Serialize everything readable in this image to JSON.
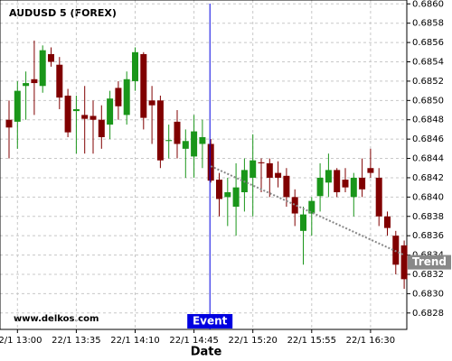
{
  "chart_data": {
    "type": "candlestick",
    "title": "AUDUSD 5 (FOREX)",
    "x_label": "Date",
    "watermark": "www.delkos.com",
    "categories": [
      null,
      "22/1 13:00",
      null,
      null,
      null,
      null,
      null,
      null,
      "22/1 13:35",
      null,
      null,
      null,
      null,
      null,
      null,
      "22/1 14:10",
      null,
      null,
      null,
      null,
      null,
      null,
      "22/1 14:45",
      null,
      null,
      null,
      null,
      null,
      null,
      "22/1 15:20",
      null,
      null,
      null,
      null,
      null,
      null,
      "22/1 15:55",
      null,
      null,
      null,
      null,
      null,
      null,
      "22/1 16:30",
      null,
      null,
      null,
      null
    ],
    "open": [
      0.6848,
      0.68478,
      0.68515,
      0.68522,
      0.68515,
      0.68548,
      0.68537,
      0.68505,
      0.68489,
      0.68485,
      0.68484,
      0.6848,
      0.68475,
      0.68513,
      0.68485,
      0.6852,
      0.68548,
      0.685,
      0.685,
      0.68458,
      0.68478,
      0.6845,
      0.68442,
      0.68455,
      0.68455,
      0.68418,
      0.684,
      0.6839,
      0.68405,
      0.6842,
      0.68436,
      0.68435,
      0.68425,
      0.68422,
      0.684,
      0.68365,
      0.68383,
      0.68401,
      0.68415,
      0.68428,
      0.68418,
      0.684,
      0.6842,
      0.6843,
      0.6842,
      0.6838,
      0.6836,
      0.6835
    ],
    "high": [
      0.685,
      0.6852,
      0.6853,
      0.68562,
      0.68557,
      0.68555,
      0.68545,
      0.68512,
      0.68505,
      0.68515,
      0.685,
      0.68495,
      0.6851,
      0.6852,
      0.6853,
      0.68555,
      0.6855,
      0.68515,
      0.68505,
      0.68475,
      0.6849,
      0.6847,
      0.68485,
      0.6848,
      0.6846,
      0.68425,
      0.6842,
      0.68435,
      0.6844,
      0.68465,
      0.6844,
      0.6844,
      0.68437,
      0.6843,
      0.68408,
      0.6839,
      0.684,
      0.68435,
      0.68445,
      0.6843,
      0.6843,
      0.68425,
      0.6844,
      0.6845,
      0.6843,
      0.68385,
      0.68365,
      0.68355
    ],
    "low": [
      0.6844,
      0.6845,
      0.6848,
      0.68485,
      0.68508,
      0.68535,
      0.68491,
      0.68462,
      0.68445,
      0.68445,
      0.68445,
      0.6845,
      0.6846,
      0.6848,
      0.68475,
      0.6851,
      0.6847,
      0.68455,
      0.6843,
      0.6844,
      0.6844,
      0.6842,
      0.6842,
      0.6843,
      0.68415,
      0.6838,
      0.6837,
      0.6836,
      0.68385,
      0.6838,
      0.68405,
      0.684,
      0.6841,
      0.6839,
      0.6837,
      0.6833,
      0.6836,
      0.68385,
      0.684,
      0.684,
      0.68405,
      0.6838,
      0.684,
      0.6842,
      0.6837,
      0.6836,
      0.6832,
      0.68305
    ],
    "close": [
      0.68472,
      0.6851,
      0.68518,
      0.68518,
      0.68552,
      0.6854,
      0.68503,
      0.68467,
      0.68491,
      0.68481,
      0.6848,
      0.68462,
      0.68502,
      0.68494,
      0.68522,
      0.6855,
      0.68482,
      0.68495,
      0.68438,
      0.68459,
      0.68455,
      0.68458,
      0.68468,
      0.68462,
      0.68417,
      0.68398,
      0.68405,
      0.6841,
      0.68428,
      0.68438,
      0.68435,
      0.6842,
      0.6842,
      0.684,
      0.68383,
      0.68382,
      0.68396,
      0.6842,
      0.68428,
      0.68405,
      0.6841,
      0.6842,
      0.68408,
      0.68425,
      0.6838,
      0.68368,
      0.6833,
      0.68315
    ],
    "up_color": "#1a961a",
    "down_color": "#800000",
    "ylim": [
      0.68263,
      0.68604
    ],
    "yticks": [
      {
        "value": 0.6828,
        "label": "0.6828"
      },
      {
        "value": 0.683,
        "label": "0.6830"
      },
      0.6832,
      0.6834,
      0.6836,
      0.6838,
      {
        "value": 0.684,
        "label": "0.6840"
      },
      0.6842,
      0.6844,
      0.6846,
      0.6848,
      {
        "value": 0.685,
        "label": "0.6850"
      },
      0.6852,
      0.6854,
      0.6856,
      0.6858,
      {
        "value": 0.686,
        "label": "0.6860"
      }
    ],
    "grid": true,
    "event": {
      "label": "Event",
      "index": 24,
      "color": "#0000e0"
    },
    "trend": {
      "label": "Trend",
      "start_index": 24,
      "start_value": 0.68432,
      "end_index": 47,
      "end_value": 0.6834,
      "color": "#888888"
    }
  }
}
